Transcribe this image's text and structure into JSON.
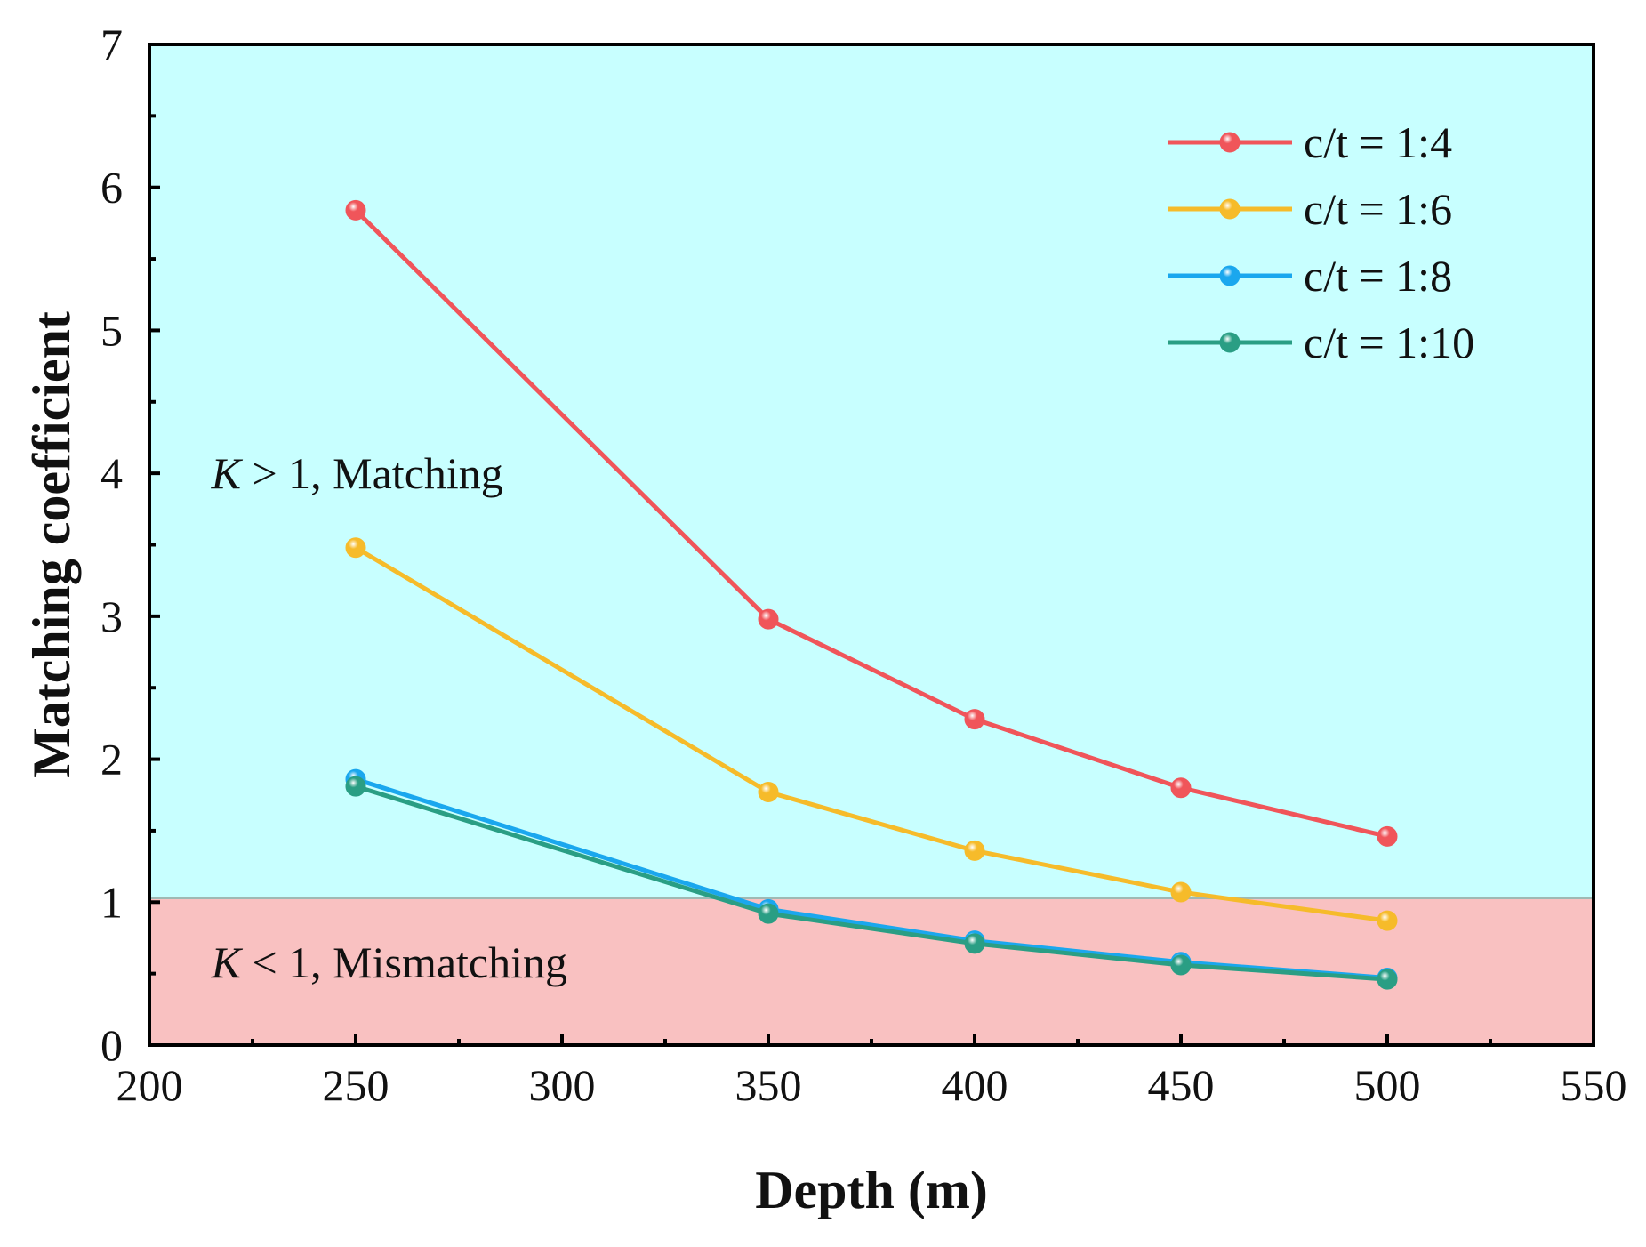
{
  "chart_data": {
    "type": "line",
    "title": "",
    "xlabel": "Depth (m)",
    "ylabel": "Matching coefficient",
    "xlim": [
      200,
      550
    ],
    "ylim": [
      0,
      7
    ],
    "x_major_ticks": [
      200,
      250,
      300,
      350,
      400,
      450,
      500,
      550
    ],
    "y_major_ticks": [
      0,
      1,
      2,
      3,
      4,
      5,
      6,
      7
    ],
    "x_minor_step": 25,
    "y_minor_step": 0.5,
    "grid": false,
    "legend_position": "top-right",
    "threshold": 1.03,
    "regions": [
      {
        "name": "matching",
        "label_parts": [
          "K",
          " > 1, Matching"
        ],
        "color": "#c8ffff",
        "from": 1.03,
        "to": 7,
        "label_x": 215,
        "label_y": 4.0
      },
      {
        "name": "mismatching",
        "label_parts": [
          "K",
          " < 1, Mismatching"
        ],
        "color": "#f9c1c1",
        "from": 0,
        "to": 1.03,
        "label_x": 215,
        "label_y": 0.58
      }
    ],
    "x": [
      250,
      350,
      400,
      450,
      500
    ],
    "series": [
      {
        "name": "c/t = 1:4",
        "color": "#f0555a",
        "values": [
          5.84,
          2.98,
          2.28,
          1.8,
          1.46
        ]
      },
      {
        "name": "c/t = 1:6",
        "color": "#f6bb2a",
        "values": [
          3.48,
          1.77,
          1.36,
          1.07,
          0.87
        ]
      },
      {
        "name": "c/t = 1:8",
        "color": "#1aa7ee",
        "values": [
          1.86,
          0.95,
          0.73,
          0.58,
          0.47
        ]
      },
      {
        "name": "c/t = 1:10",
        "color": "#2a9e84",
        "values": [
          1.81,
          0.92,
          0.71,
          0.56,
          0.46
        ]
      }
    ]
  }
}
